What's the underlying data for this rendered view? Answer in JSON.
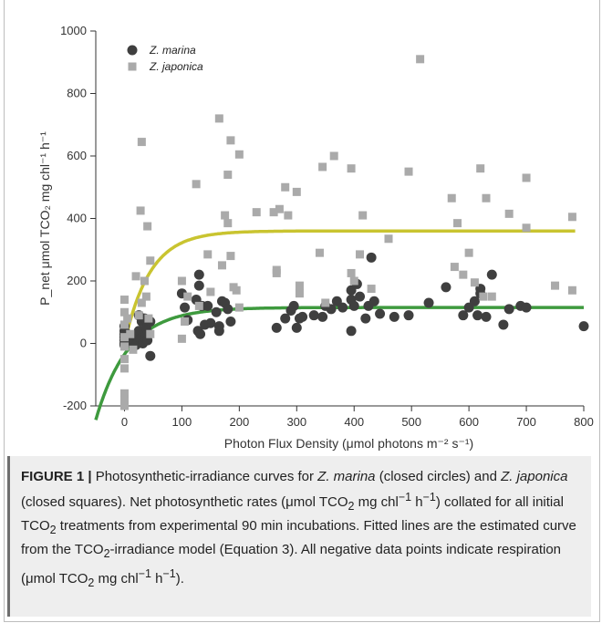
{
  "chart_data": {
    "type": "scatter",
    "xlabel": "Photon Flux Density (μmol photons m⁻² s⁻¹)",
    "ylabel": "P_net μmol TCO₂ mg chl⁻¹ h⁻¹",
    "xlim": [
      -50,
      800
    ],
    "ylim": [
      -200,
      1000
    ],
    "x_ticks": [
      0,
      100,
      200,
      300,
      400,
      500,
      600,
      700,
      800
    ],
    "y_ticks": [
      -200,
      0,
      200,
      400,
      600,
      800,
      1000
    ],
    "legend_position": "top-left",
    "series": [
      {
        "name": "Z. marina",
        "marker": "circle",
        "color": "#3f3f3f",
        "points": [
          [
            0,
            30
          ],
          [
            0,
            55
          ],
          [
            0,
            20
          ],
          [
            0,
            10
          ],
          [
            0,
            -5
          ],
          [
            0,
            40
          ],
          [
            0,
            0
          ],
          [
            5,
            30
          ],
          [
            10,
            15
          ],
          [
            15,
            5
          ],
          [
            20,
            25
          ],
          [
            20,
            -5
          ],
          [
            25,
            90
          ],
          [
            25,
            40
          ],
          [
            28,
            15
          ],
          [
            30,
            70
          ],
          [
            32,
            0
          ],
          [
            35,
            80
          ],
          [
            35,
            20
          ],
          [
            38,
            50
          ],
          [
            40,
            10
          ],
          [
            42,
            30
          ],
          [
            45,
            -40
          ],
          [
            45,
            70
          ],
          [
            100,
            160
          ],
          [
            105,
            115
          ],
          [
            110,
            75
          ],
          [
            125,
            140
          ],
          [
            128,
            40
          ],
          [
            130,
            220
          ],
          [
            130,
            185
          ],
          [
            132,
            30
          ],
          [
            135,
            120
          ],
          [
            140,
            60
          ],
          [
            145,
            120
          ],
          [
            150,
            65
          ],
          [
            160,
            100
          ],
          [
            165,
            55
          ],
          [
            165,
            40
          ],
          [
            170,
            135
          ],
          [
            175,
            130
          ],
          [
            180,
            110
          ],
          [
            185,
            70
          ],
          [
            265,
            50
          ],
          [
            280,
            80
          ],
          [
            290,
            105
          ],
          [
            295,
            120
          ],
          [
            300,
            50
          ],
          [
            305,
            80
          ],
          [
            310,
            85
          ],
          [
            330,
            90
          ],
          [
            345,
            85
          ],
          [
            350,
            120
          ],
          [
            360,
            110
          ],
          [
            370,
            135
          ],
          [
            380,
            115
          ],
          [
            395,
            170
          ],
          [
            395,
            140
          ],
          [
            395,
            40
          ],
          [
            400,
            120
          ],
          [
            405,
            190
          ],
          [
            410,
            150
          ],
          [
            420,
            80
          ],
          [
            425,
            120
          ],
          [
            430,
            275
          ],
          [
            435,
            135
          ],
          [
            445,
            95
          ],
          [
            470,
            85
          ],
          [
            495,
            90
          ],
          [
            530,
            130
          ],
          [
            560,
            180
          ],
          [
            590,
            90
          ],
          [
            600,
            115
          ],
          [
            610,
            135
          ],
          [
            615,
            90
          ],
          [
            620,
            175
          ],
          [
            620,
            160
          ],
          [
            630,
            85
          ],
          [
            640,
            220
          ],
          [
            660,
            60
          ],
          [
            670,
            110
          ],
          [
            690,
            120
          ],
          [
            700,
            115
          ],
          [
            800,
            55
          ]
        ]
      },
      {
        "name": "Z. japonica",
        "marker": "square",
        "color": "#aaaaaa",
        "points": [
          [
            0,
            140
          ],
          [
            0,
            100
          ],
          [
            0,
            60
          ],
          [
            0,
            20
          ],
          [
            0,
            -10
          ],
          [
            0,
            -50
          ],
          [
            0,
            -80
          ],
          [
            0,
            -160
          ],
          [
            0,
            -180
          ],
          [
            0,
            -200
          ],
          [
            5,
            80
          ],
          [
            10,
            30
          ],
          [
            15,
            -20
          ],
          [
            20,
            215
          ],
          [
            25,
            90
          ],
          [
            28,
            425
          ],
          [
            30,
            130
          ],
          [
            30,
            645
          ],
          [
            35,
            200
          ],
          [
            38,
            150
          ],
          [
            40,
            375
          ],
          [
            42,
            80
          ],
          [
            45,
            30
          ],
          [
            45,
            265
          ],
          [
            100,
            200
          ],
          [
            100,
            15
          ],
          [
            105,
            70
          ],
          [
            110,
            150
          ],
          [
            125,
            510
          ],
          [
            130,
            120
          ],
          [
            145,
            285
          ],
          [
            150,
            165
          ],
          [
            165,
            720
          ],
          [
            170,
            250
          ],
          [
            175,
            410
          ],
          [
            180,
            385
          ],
          [
            180,
            540
          ],
          [
            185,
            650
          ],
          [
            185,
            280
          ],
          [
            190,
            180
          ],
          [
            195,
            170
          ],
          [
            200,
            605
          ],
          [
            200,
            115
          ],
          [
            230,
            420
          ],
          [
            260,
            420
          ],
          [
            265,
            225
          ],
          [
            265,
            235
          ],
          [
            270,
            430
          ],
          [
            280,
            500
          ],
          [
            285,
            410
          ],
          [
            300,
            485
          ],
          [
            305,
            185
          ],
          [
            305,
            160
          ],
          [
            340,
            290
          ],
          [
            345,
            565
          ],
          [
            350,
            130
          ],
          [
            365,
            600
          ],
          [
            395,
            560
          ],
          [
            395,
            225
          ],
          [
            400,
            200
          ],
          [
            410,
            285
          ],
          [
            415,
            410
          ],
          [
            430,
            175
          ],
          [
            460,
            335
          ],
          [
            495,
            550
          ],
          [
            515,
            910
          ],
          [
            570,
            465
          ],
          [
            575,
            245
          ],
          [
            580,
            385
          ],
          [
            590,
            220
          ],
          [
            600,
            290
          ],
          [
            610,
            195
          ],
          [
            620,
            560
          ],
          [
            625,
            150
          ],
          [
            630,
            465
          ],
          [
            640,
            150
          ],
          [
            670,
            415
          ],
          [
            700,
            530
          ],
          [
            700,
            370
          ],
          [
            750,
            185
          ],
          [
            780,
            405
          ],
          [
            780,
            170
          ]
        ]
      }
    ],
    "fitted_curves": [
      {
        "color": "#c9c430",
        "pmax": 360,
        "k": 0.0225,
        "x_range": [
          5,
          785
        ]
      },
      {
        "color": "#3e9a3e",
        "pmax": 115,
        "p0": -35,
        "k": 0.0175,
        "x_range": [
          -50,
          800
        ]
      }
    ]
  },
  "caption": {
    "label": "FIGURE 1 |",
    "text_html": " Photosynthetic-irradiance curves for <i>Z. marina</i> (closed circles) and <i>Z. japonica</i> (closed squares). Net photosynthetic rates (μmol TCO<sub>2</sub> mg chl<sup>−1</sup> h<sup>−1</sup>) collated for all initial TCO<sub>2</sub> treatments from experimental 90 min incubations. Fitted lines are the estimated curve from the TCO<sub>2</sub>-irradiance model (Equation 3). All negative data points indicate respiration (μmol TCO<sub>2</sub> mg chl<sup>−1</sup> h<sup>−1</sup>)."
  }
}
